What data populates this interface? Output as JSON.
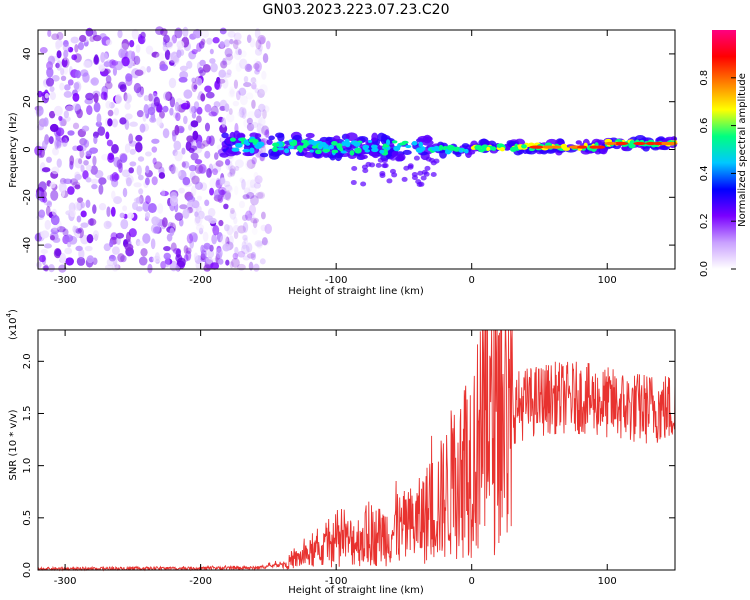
{
  "title": "GN03.2023.223.07.23.C20",
  "chart_data": [
    {
      "type": "heatmap",
      "xlabel": "Height of straight line (km)",
      "ylabel": "Frequency (Hz)",
      "xlim": [
        -320,
        150
      ],
      "ylim": [
        -50,
        50
      ],
      "xticks": [
        -300,
        -200,
        -100,
        0,
        100
      ],
      "yticks": [
        -40,
        -20,
        0,
        20,
        40
      ],
      "colorbar": {
        "label": "Normalized spectral amplitude",
        "range": [
          0.0,
          1.0
        ],
        "ticks": [
          "0.0",
          "0.2",
          "0.4",
          "0.6",
          "0.8"
        ],
        "colors": [
          "#ffffff",
          "#c9a0ff",
          "#7a00ff",
          "#0000ff",
          "#00c8ff",
          "#00ff80",
          "#ffff00",
          "#ff8000",
          "#ff0000",
          "#ff0080"
        ]
      },
      "regions": [
        {
          "name": "noise",
          "x": [
            -320,
            -165
          ],
          "freq": [
            -50,
            50
          ],
          "amplitude": 0.08
        },
        {
          "name": "signal",
          "x": [
            -185,
            150
          ],
          "freq_center": [
            2,
            0
          ],
          "amplitude": 0.6
        }
      ]
    },
    {
      "type": "line",
      "xlabel": "Height of straight line (km)",
      "ylabel": "SNR (10 * v/v)",
      "scale_label": "(x10",
      "scale_exp": "4",
      "scale_close": ")",
      "xlim": [
        -320,
        150
      ],
      "ylim": [
        0.0,
        2.3
      ],
      "xticks": [
        -300,
        -200,
        -100,
        0,
        100
      ],
      "yticks": [
        "0.0",
        "0.5",
        "1.0",
        "1.5",
        "2.0"
      ],
      "color": "#e8322f",
      "envelope": {
        "x": [
          -320,
          -160,
          -140,
          -120,
          -100,
          -80,
          -60,
          -40,
          -20,
          -10,
          0,
          10,
          20,
          30,
          40,
          60,
          80,
          100,
          120,
          150
        ],
        "y": [
          0.01,
          0.02,
          0.05,
          0.15,
          0.25,
          0.3,
          0.35,
          0.45,
          0.7,
          0.95,
          1.1,
          1.3,
          1.45,
          1.55,
          1.6,
          1.65,
          1.65,
          1.6,
          1.55,
          1.55
        ]
      }
    }
  ]
}
